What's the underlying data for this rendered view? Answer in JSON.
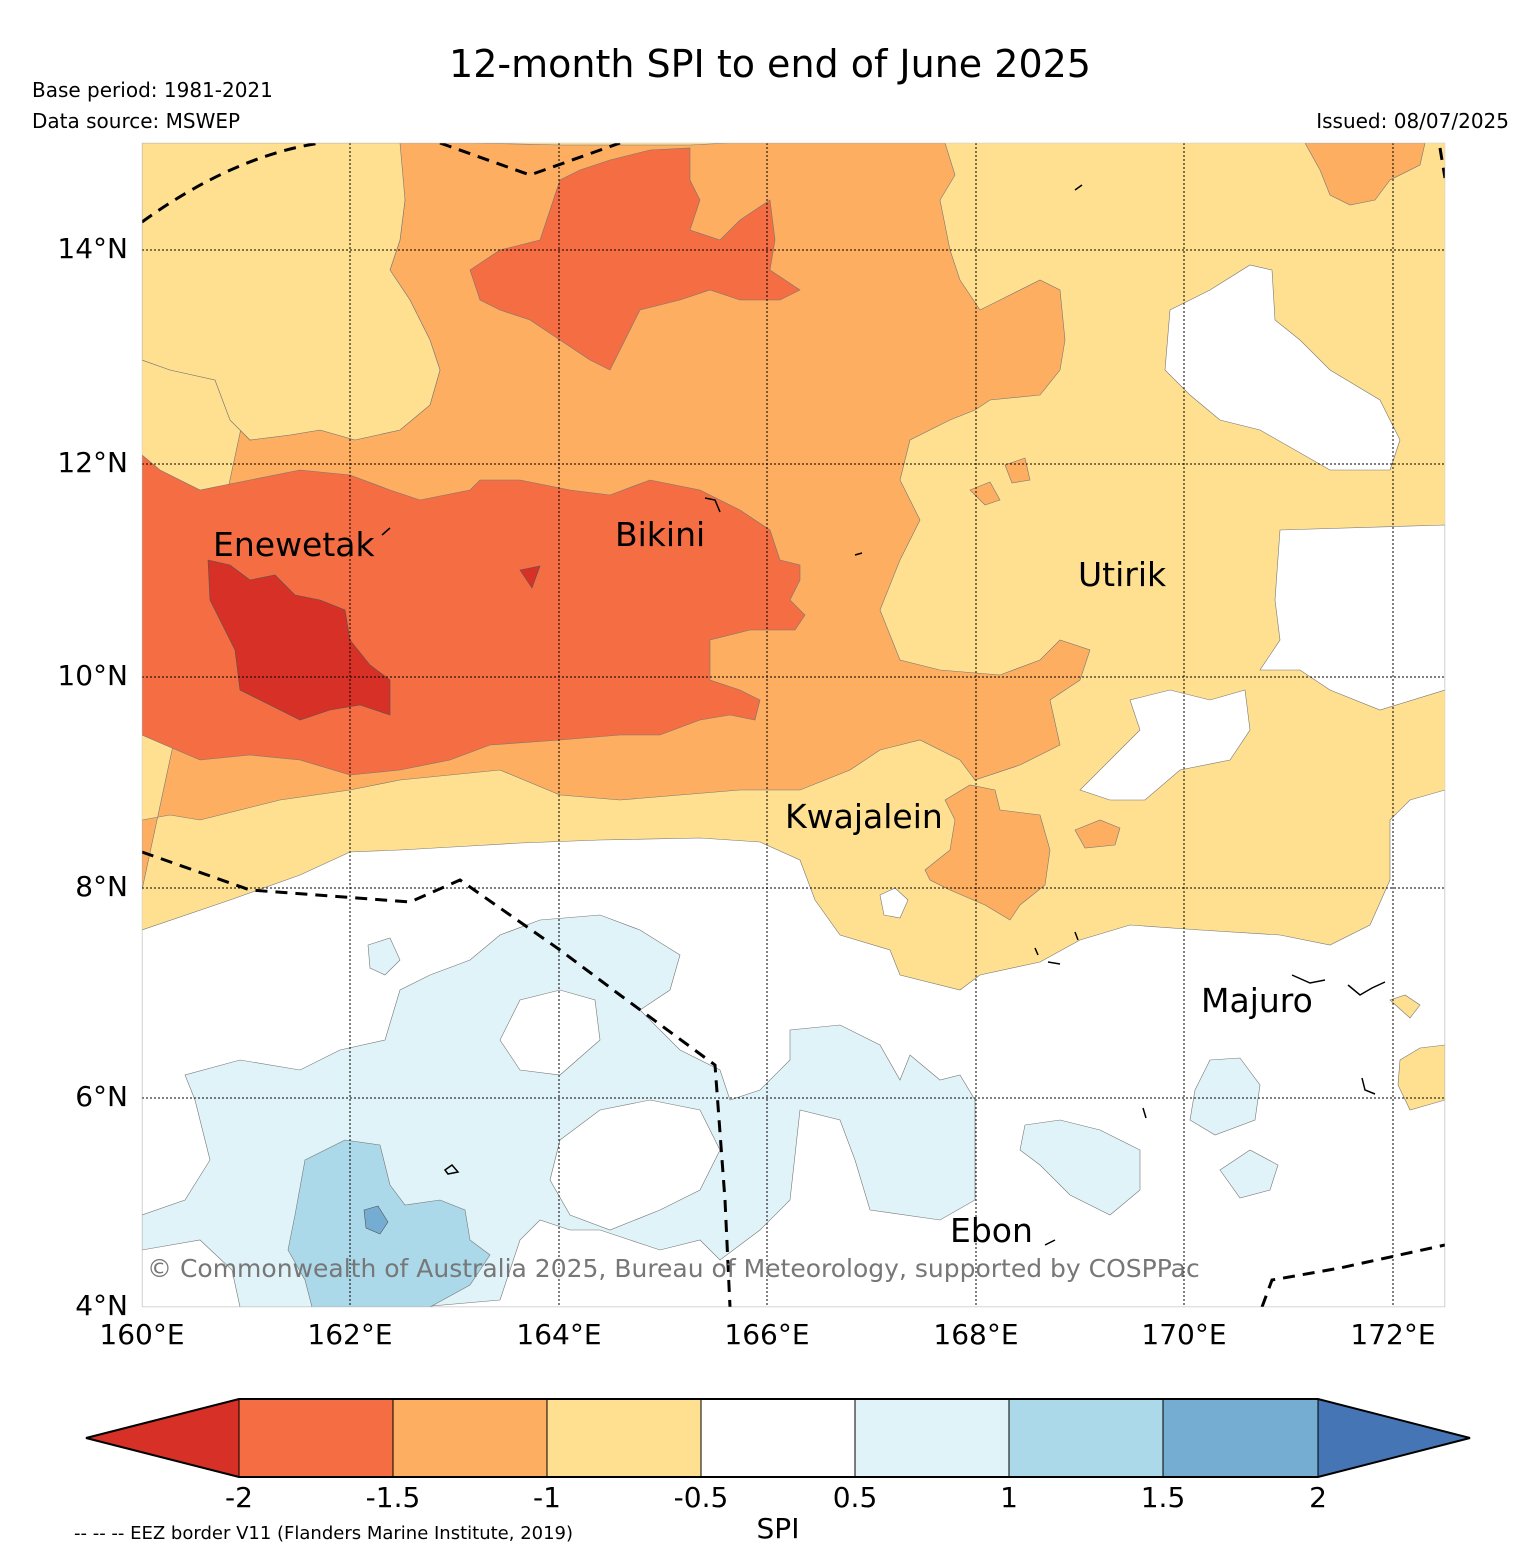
{
  "title": "12-month SPI to end of June 2025",
  "base_period": "Base period: 1981-2021",
  "data_source": "Data source: MSWEP",
  "issued": "Issued: 08/07/2025",
  "latitude_labels": [
    "14°N",
    "12°N",
    "10°N",
    "8°N",
    "6°N",
    "4°N"
  ],
  "longitude_labels": [
    "160°E",
    "162°E",
    "164°E",
    "166°E",
    "168°E",
    "170°E",
    "172°E"
  ],
  "places": [
    "Enewetak",
    "Bikini",
    "Utirik",
    "Kwajalein",
    "Majuro",
    "Ebon"
  ],
  "copyright": "© Commonwealth of Australia 2025, Bureau of Meteorology, supported by COSPPac",
  "colorbar": {
    "label": "SPI",
    "ticks": [
      "-2",
      "-1.5",
      "-1",
      "-0.5",
      "0.5",
      "1",
      "1.5",
      "2"
    ],
    "colors": [
      "#d73027",
      "#f46d43",
      "#fdae61",
      "#fee090",
      "#ffffff",
      "#e0f3f8",
      "#abd9e9",
      "#74add1",
      "#4575b4"
    ]
  },
  "eez_note": "-- -- -- EEZ border V11 (Flanders Marine Institute, 2019)",
  "map_colors": {
    "spi_below_-2": "#d73027",
    "spi_-2_to_-1.5": "#f46d43",
    "spi_-1.5_to_-1": "#fdae61",
    "spi_-1_to_-0.5": "#fee090",
    "spi_-0.5_to_0.5": "#ffffff",
    "spi_0.5_to_1": "#e0f3f8",
    "spi_1_to_1.5": "#abd9e9",
    "spi_1.5_to_2": "#74add1"
  }
}
